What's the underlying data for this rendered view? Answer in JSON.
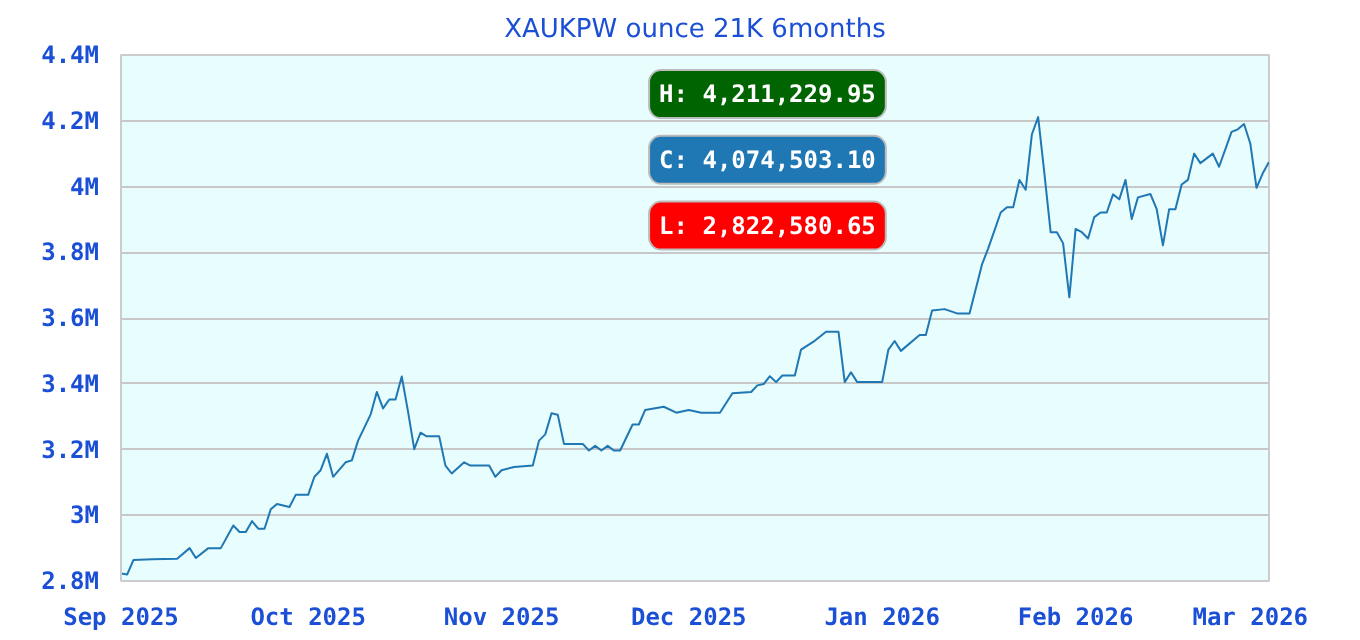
{
  "chart_data": {
    "type": "line",
    "title": "XAUKPW ounce 21K 6months",
    "x": [
      "2025-09-01",
      "2025-09-02",
      "2025-09-03",
      "2025-09-06",
      "2025-09-10",
      "2025-09-12",
      "2025-09-13",
      "2025-09-15",
      "2025-09-17",
      "2025-09-19",
      "2025-09-20",
      "2025-09-21",
      "2025-09-22",
      "2025-09-23",
      "2025-09-24",
      "2025-09-25",
      "2025-09-26",
      "2025-09-28",
      "2025-09-29",
      "2025-10-01",
      "2025-10-02",
      "2025-10-03",
      "2025-10-04",
      "2025-10-05",
      "2025-10-07",
      "2025-10-08",
      "2025-10-09",
      "2025-10-11",
      "2025-10-12",
      "2025-10-13",
      "2025-10-14",
      "2025-10-15",
      "2025-10-16",
      "2025-10-17",
      "2025-10-18",
      "2025-10-19",
      "2025-10-20",
      "2025-10-22",
      "2025-10-23",
      "2025-10-24",
      "2025-10-26",
      "2025-10-27",
      "2025-10-30",
      "2025-10-31",
      "2025-11-01",
      "2025-11-03",
      "2025-11-06",
      "2025-11-07",
      "2025-11-08",
      "2025-11-09",
      "2025-11-10",
      "2025-11-11",
      "2025-11-14",
      "2025-11-15",
      "2025-11-16",
      "2025-11-17",
      "2025-11-18",
      "2025-11-19",
      "2025-11-20",
      "2025-11-22",
      "2025-11-23",
      "2025-11-24",
      "2025-11-27",
      "2025-11-29",
      "2025-12-01",
      "2025-12-03",
      "2025-12-06",
      "2025-12-08",
      "2025-12-11",
      "2025-12-12",
      "2025-12-13",
      "2025-12-14",
      "2025-12-15",
      "2025-12-16",
      "2025-12-18",
      "2025-12-19",
      "2025-12-21",
      "2025-12-23",
      "2025-12-25",
      "2025-12-26",
      "2025-12-27",
      "2025-12-28",
      "2026-01-01",
      "2026-01-02",
      "2026-01-03",
      "2026-01-04",
      "2026-01-07",
      "2026-01-08",
      "2026-01-09",
      "2026-01-11",
      "2026-01-13",
      "2026-01-15",
      "2026-01-17",
      "2026-01-18",
      "2026-01-20",
      "2026-01-21",
      "2026-01-22",
      "2026-01-23",
      "2026-01-24",
      "2026-01-25",
      "2026-01-26",
      "2026-01-27",
      "2026-01-28",
      "2026-01-29",
      "2026-01-30",
      "2026-01-31",
      "2026-02-01",
      "2026-02-02",
      "2026-02-03",
      "2026-02-04",
      "2026-02-05",
      "2026-02-06",
      "2026-02-07",
      "2026-02-08",
      "2026-02-09",
      "2026-02-10",
      "2026-02-11",
      "2026-02-13",
      "2026-02-14",
      "2026-02-15",
      "2026-02-16",
      "2026-02-17",
      "2026-02-18",
      "2026-02-19",
      "2026-02-20",
      "2026-02-21",
      "2026-02-23",
      "2026-02-24",
      "2026-02-26",
      "2026-02-27",
      "2026-02-28",
      "2026-03-01",
      "2026-03-02",
      "2026-03-03",
      "2026-03-04"
    ],
    "series": [
      {
        "color": "#1f77b4",
        "values": [
          2822600,
          2820000,
          2864000,
          2866000,
          2868000,
          2900000,
          2870000,
          2900000,
          2900000,
          2969000,
          2949000,
          2949000,
          2982000,
          2959000,
          2959000,
          3018000,
          3034000,
          3025000,
          3062000,
          3062000,
          3117000,
          3137000,
          3187000,
          3117000,
          3161000,
          3167000,
          3227000,
          3306000,
          3375000,
          3325000,
          3352000,
          3352000,
          3422000,
          3316000,
          3201000,
          3251000,
          3240000,
          3240000,
          3151000,
          3127000,
          3161000,
          3151000,
          3151000,
          3117000,
          3137000,
          3147000,
          3151000,
          3227000,
          3246000,
          3310000,
          3306000,
          3217000,
          3217000,
          3197000,
          3211000,
          3197000,
          3211000,
          3197000,
          3197000,
          3276000,
          3276000,
          3320000,
          3330000,
          3312000,
          3320000,
          3312000,
          3312000,
          3371000,
          3375000,
          3395000,
          3399000,
          3423000,
          3405000,
          3425000,
          3425000,
          3504000,
          3528000,
          3558000,
          3558000,
          3405000,
          3435000,
          3405000,
          3405000,
          3504000,
          3530000,
          3500000,
          3548000,
          3548000,
          3623000,
          3627000,
          3614000,
          3614000,
          3763000,
          3812000,
          3921000,
          3937000,
          3937000,
          4020000,
          3990000,
          4159000,
          4211200,
          4040000,
          3861000,
          3861000,
          3827000,
          3663000,
          3871000,
          3861000,
          3842000,
          3907000,
          3921000,
          3921000,
          3976000,
          3961000,
          4020000,
          3901000,
          3967000,
          3977000,
          3931000,
          3821000,
          3931000,
          3931000,
          4006000,
          4020000,
          4100000,
          4071000,
          4100000,
          4060000,
          4166000,
          4174000,
          4190000,
          4131000,
          3996000,
          4040000,
          4074500
        ]
      }
    ],
    "xlim": [
      "2025-09-01",
      "2026-03-04"
    ],
    "xticks": [
      {
        "value": "2025-09-01",
        "label": "Sep 2025"
      },
      {
        "value": "2025-10-01",
        "label": "Oct 2025"
      },
      {
        "value": "2025-11-01",
        "label": "Nov 2025"
      },
      {
        "value": "2025-12-01",
        "label": "Dec 2025"
      },
      {
        "value": "2026-01-01",
        "label": "Jan 2026"
      },
      {
        "value": "2026-02-01",
        "label": "Feb 2026"
      },
      {
        "value": "2026-03-01",
        "label": "Mar 2026"
      }
    ],
    "ylim": [
      2800000,
      4400000
    ],
    "yticks": [
      {
        "value": 2800000,
        "label": "2.8M"
      },
      {
        "value": 3000000,
        "label": "3M"
      },
      {
        "value": 3200000,
        "label": "3.2M"
      },
      {
        "value": 3400000,
        "label": "3.4M"
      },
      {
        "value": 3600000,
        "label": "3.6M"
      },
      {
        "value": 3800000,
        "label": "3.8M"
      },
      {
        "value": 4000000,
        "label": "4M"
      },
      {
        "value": 4200000,
        "label": "4.2M"
      },
      {
        "value": 4400000,
        "label": "4.4M"
      }
    ],
    "grid": "y",
    "annotations": [
      "H: 4,211,229.95",
      "C: 4,074,503.10",
      "L: 2,822,580.65"
    ]
  }
}
